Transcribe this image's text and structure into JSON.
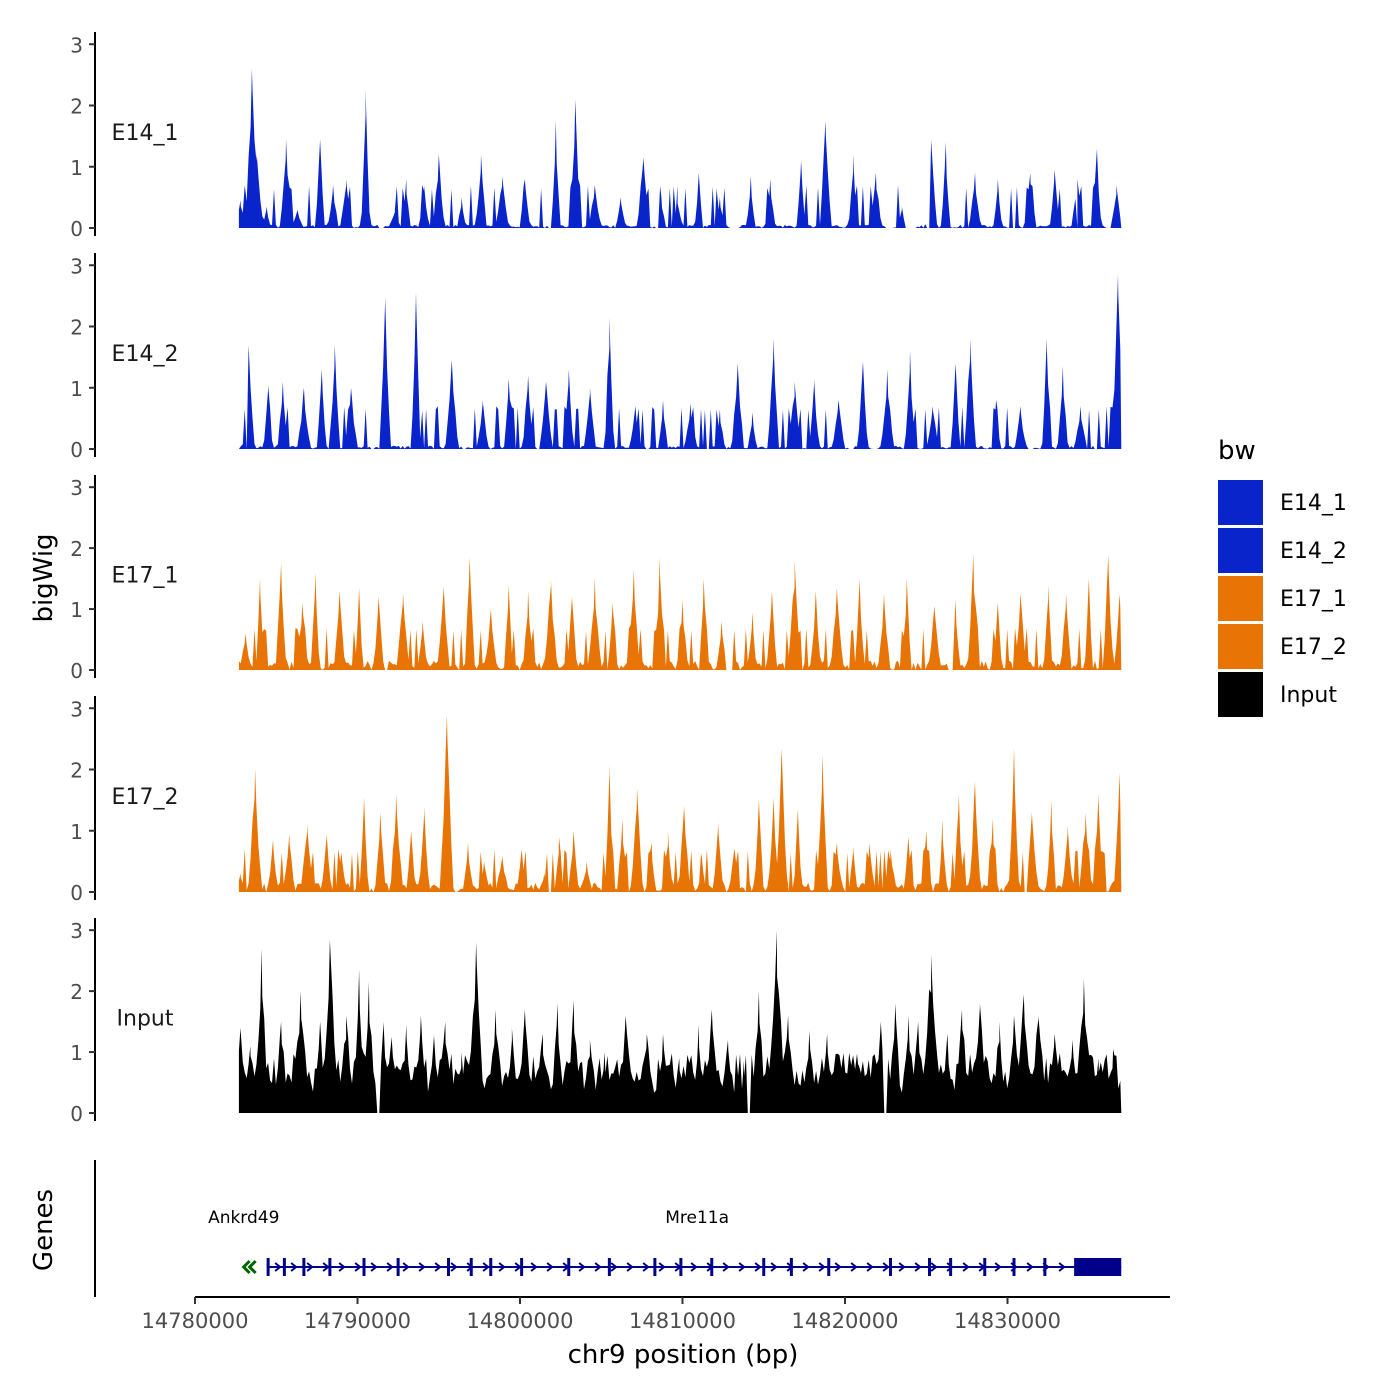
{
  "chart_data": {
    "type": "area",
    "xlabel": "chr9 position (bp)",
    "ylabel": "bigWig",
    "genes_label": "Genes",
    "xlim": [
      14780000,
      14840000
    ],
    "x_ticks": [
      14780000,
      14790000,
      14800000,
      14810000,
      14820000,
      14830000
    ],
    "x_tick_labels": [
      "14780000",
      "14790000",
      "14800000",
      "14810000",
      "14820000",
      "14830000"
    ],
    "ylim": [
      0,
      3.2
    ],
    "y_ticks": [
      0,
      1,
      2,
      3
    ],
    "y_tick_labels": [
      "0",
      "1",
      "2",
      "3"
    ],
    "data_start": 14782700,
    "data_end": 14837000,
    "legend": {
      "title": "bw",
      "position": "right",
      "entries": [
        {
          "label": "E14_1",
          "color": "#0a24cc"
        },
        {
          "label": "E14_2",
          "color": "#0a24cc"
        },
        {
          "label": "E17_1",
          "color": "#e87405"
        },
        {
          "label": "E17_2",
          "color": "#e87405"
        },
        {
          "label": "Input",
          "color": "#000000"
        }
      ]
    },
    "series": [
      {
        "name": "E14_1",
        "color": "#0a24cc",
        "peaks": [
          [
            14782800,
            0.45
          ],
          [
            14783500,
            2.6
          ],
          [
            14783800,
            1.2
          ],
          [
            14784400,
            0.35
          ],
          [
            14785600,
            1.45
          ],
          [
            14786300,
            0.3
          ],
          [
            14787700,
            1.45
          ],
          [
            14788500,
            0.7
          ],
          [
            14789300,
            0.8
          ],
          [
            14790500,
            2.25
          ],
          [
            14792300,
            0.3
          ],
          [
            14793000,
            0.8
          ],
          [
            14794100,
            0.7
          ],
          [
            14795000,
            1.2
          ],
          [
            14796400,
            0.5
          ],
          [
            14797600,
            1.2
          ],
          [
            14798900,
            0.85
          ],
          [
            14800300,
            0.8
          ],
          [
            14802200,
            1.75
          ],
          [
            14803400,
            2.1
          ],
          [
            14804600,
            0.7
          ],
          [
            14806200,
            0.5
          ],
          [
            14807600,
            1.15
          ],
          [
            14808700,
            0.5
          ],
          [
            14809700,
            0.4
          ],
          [
            14811000,
            0.9
          ],
          [
            14812300,
            0.5
          ],
          [
            14814200,
            0.85
          ],
          [
            14815400,
            0.8
          ],
          [
            14817300,
            1.1
          ],
          [
            14818800,
            1.75
          ],
          [
            14820500,
            1.2
          ],
          [
            14821900,
            0.9
          ],
          [
            14823500,
            0.35
          ],
          [
            14825300,
            1.45
          ],
          [
            14826200,
            1.4
          ],
          [
            14828000,
            0.9
          ],
          [
            14829400,
            0.8
          ],
          [
            14831400,
            0.9
          ],
          [
            14832900,
            0.95
          ],
          [
            14834300,
            0.8
          ],
          [
            14835500,
            1.3
          ],
          [
            14836700,
            0.7
          ]
        ],
        "gaps": [
          [
            14791300,
            14791600
          ],
          [
            14801700,
            14801900
          ],
          [
            14808300,
            14808500
          ],
          [
            14812900,
            14813500
          ],
          [
            14822500,
            14823000
          ],
          [
            14823700,
            14824400
          ],
          [
            14825000,
            14825200
          ],
          [
            14830300,
            14830500
          ],
          [
            14834200,
            14834400
          ],
          [
            14836100,
            14836400
          ]
        ]
      },
      {
        "name": "E14_2",
        "color": "#0a24cc",
        "peaks": [
          [
            14783300,
            1.7
          ],
          [
            14784500,
            1.05
          ],
          [
            14785400,
            1.1
          ],
          [
            14786700,
            1.0
          ],
          [
            14787800,
            1.3
          ],
          [
            14788600,
            1.7
          ],
          [
            14789600,
            1.0
          ],
          [
            14791700,
            2.5
          ],
          [
            14793600,
            2.55
          ],
          [
            14795800,
            1.45
          ],
          [
            14797700,
            0.8
          ],
          [
            14799300,
            1.15
          ],
          [
            14800500,
            1.2
          ],
          [
            14801600,
            1.1
          ],
          [
            14803000,
            1.3
          ],
          [
            14804300,
            1.0
          ],
          [
            14805500,
            2.15
          ],
          [
            14807100,
            0.7
          ],
          [
            14808800,
            0.8
          ],
          [
            14810500,
            0.75
          ],
          [
            14812300,
            0.65
          ],
          [
            14813400,
            1.4
          ],
          [
            14814300,
            0.6
          ],
          [
            14815600,
            1.8
          ],
          [
            14816900,
            1.1
          ],
          [
            14818100,
            1.15
          ],
          [
            14819600,
            0.8
          ],
          [
            14821100,
            1.45
          ],
          [
            14822600,
            1.3
          ],
          [
            14824000,
            1.6
          ],
          [
            14825400,
            0.7
          ],
          [
            14826800,
            1.4
          ],
          [
            14827700,
            1.8
          ],
          [
            14829300,
            0.8
          ],
          [
            14830800,
            0.7
          ],
          [
            14832400,
            1.8
          ],
          [
            14833400,
            1.35
          ],
          [
            14834500,
            0.7
          ],
          [
            14836800,
            2.85
          ]
        ],
        "gaps": [
          [
            14783100,
            14783200
          ],
          [
            14790800,
            14791000
          ],
          [
            14796500,
            14796700
          ],
          [
            14801000,
            14801200
          ],
          [
            14807700,
            14807900
          ],
          [
            14811500,
            14811700
          ],
          [
            14820200,
            14820500
          ],
          [
            14821800,
            14822000
          ],
          [
            14831300,
            14831600
          ],
          [
            14835300,
            14835600
          ]
        ]
      },
      {
        "name": "E17_1",
        "color": "#e87405",
        "peaks": [
          [
            14783100,
            0.6
          ],
          [
            14784000,
            1.5
          ],
          [
            14785300,
            1.75
          ],
          [
            14786600,
            1.1
          ],
          [
            14787400,
            1.6
          ],
          [
            14788900,
            1.3
          ],
          [
            14790100,
            1.35
          ],
          [
            14791300,
            1.2
          ],
          [
            14792800,
            1.25
          ],
          [
            14794000,
            0.8
          ],
          [
            14795300,
            1.4
          ],
          [
            14796900,
            1.85
          ],
          [
            14798200,
            1.0
          ],
          [
            14799300,
            1.4
          ],
          [
            14800500,
            1.3
          ],
          [
            14801900,
            1.5
          ],
          [
            14803200,
            1.2
          ],
          [
            14804600,
            1.5
          ],
          [
            14805700,
            1.1
          ],
          [
            14807000,
            1.65
          ],
          [
            14808600,
            1.85
          ],
          [
            14810000,
            1.15
          ],
          [
            14811300,
            1.5
          ],
          [
            14812400,
            0.8
          ],
          [
            14814300,
            0.95
          ],
          [
            14815500,
            1.3
          ],
          [
            14816900,
            1.8
          ],
          [
            14818200,
            1.3
          ],
          [
            14819500,
            1.35
          ],
          [
            14820900,
            1.5
          ],
          [
            14822400,
            1.25
          ],
          [
            14823800,
            1.5
          ],
          [
            14825500,
            1.05
          ],
          [
            14826800,
            1.15
          ],
          [
            14827900,
            1.9
          ],
          [
            14829400,
            1.1
          ],
          [
            14830800,
            1.25
          ],
          [
            14832500,
            1.4
          ],
          [
            14833600,
            1.25
          ],
          [
            14835000,
            1.5
          ],
          [
            14836200,
            1.9
          ],
          [
            14836900,
            1.25
          ]
        ],
        "gaps": [
          [
            14791700,
            14791900
          ],
          [
            14812600,
            14813100
          ],
          [
            14826300,
            14826700
          ]
        ]
      },
      {
        "name": "E17_2",
        "color": "#e87405",
        "peaks": [
          [
            14782800,
            0.3
          ],
          [
            14783700,
            2.0
          ],
          [
            14784800,
            0.85
          ],
          [
            14785800,
            0.95
          ],
          [
            14786900,
            1.1
          ],
          [
            14788100,
            0.95
          ],
          [
            14789000,
            0.65
          ],
          [
            14790400,
            1.55
          ],
          [
            14791400,
            1.3
          ],
          [
            14792400,
            1.6
          ],
          [
            14793300,
            1.0
          ],
          [
            14794100,
            1.4
          ],
          [
            14795500,
            2.9
          ],
          [
            14796800,
            0.8
          ],
          [
            14797800,
            0.5
          ],
          [
            14798900,
            0.6
          ],
          [
            14800100,
            0.7
          ],
          [
            14801500,
            0.3
          ],
          [
            14802400,
            0.9
          ],
          [
            14803300,
            1.0
          ],
          [
            14804100,
            0.5
          ],
          [
            14805500,
            2.1
          ],
          [
            14806300,
            1.2
          ],
          [
            14807200,
            1.7
          ],
          [
            14808100,
            0.8
          ],
          [
            14809100,
            1.0
          ],
          [
            14810100,
            1.4
          ],
          [
            14811200,
            0.55
          ],
          [
            14812200,
            1.1
          ],
          [
            14813200,
            0.7
          ],
          [
            14814700,
            1.5
          ],
          [
            14815600,
            1.55
          ],
          [
            14816100,
            2.35
          ],
          [
            14817100,
            1.35
          ],
          [
            14818600,
            2.25
          ],
          [
            14819500,
            0.8
          ],
          [
            14820500,
            0.75
          ],
          [
            14821500,
            0.8
          ],
          [
            14822800,
            0.7
          ],
          [
            14823900,
            0.9
          ],
          [
            14825000,
            1.0
          ],
          [
            14826000,
            1.2
          ],
          [
            14827000,
            1.6
          ],
          [
            14828000,
            1.8
          ],
          [
            14829100,
            1.2
          ],
          [
            14830400,
            2.35
          ],
          [
            14831500,
            1.3
          ],
          [
            14832700,
            1.5
          ],
          [
            14833700,
            1.1
          ],
          [
            14834800,
            1.3
          ],
          [
            14835600,
            1.6
          ],
          [
            14836900,
            1.95
          ]
        ],
        "gaps": [
          [
            14784300,
            14784400
          ],
          [
            14790900,
            14791000
          ],
          [
            14801700,
            14801900
          ],
          [
            14806600,
            14806700
          ],
          [
            14812600,
            14812800
          ],
          [
            14831000,
            14831200
          ]
        ]
      },
      {
        "name": "Input",
        "color": "#000000",
        "peaks": [
          [
            14782800,
            1.4
          ],
          [
            14783400,
            1.1
          ],
          [
            14784100,
            2.7
          ],
          [
            14785300,
            1.5
          ],
          [
            14786500,
            2.0
          ],
          [
            14787700,
            1.5
          ],
          [
            14788300,
            2.85
          ],
          [
            14789300,
            1.6
          ],
          [
            14790100,
            2.35
          ],
          [
            14790700,
            2.15
          ],
          [
            14791600,
            1.5
          ],
          [
            14792100,
            1.25
          ],
          [
            14793000,
            1.45
          ],
          [
            14793900,
            1.6
          ],
          [
            14794700,
            1.3
          ],
          [
            14795400,
            1.5
          ],
          [
            14796400,
            1.0
          ],
          [
            14797300,
            2.8
          ],
          [
            14798500,
            1.7
          ],
          [
            14799500,
            1.4
          ],
          [
            14800300,
            1.7
          ],
          [
            14801400,
            1.3
          ],
          [
            14802300,
            1.8
          ],
          [
            14803300,
            1.85
          ],
          [
            14804300,
            1.2
          ],
          [
            14805200,
            1.0
          ],
          [
            14806500,
            1.6
          ],
          [
            14807800,
            1.3
          ],
          [
            14808800,
            1.3
          ],
          [
            14809800,
            0.9
          ],
          [
            14811000,
            1.45
          ],
          [
            14811800,
            1.7
          ],
          [
            14812800,
            1.2
          ],
          [
            14813800,
            0.6
          ],
          [
            14814700,
            2.0
          ],
          [
            14815800,
            3.0
          ],
          [
            14816500,
            1.6
          ],
          [
            14817800,
            1.35
          ],
          [
            14818900,
            1.3
          ],
          [
            14819900,
            1.0
          ],
          [
            14820800,
            0.8
          ],
          [
            14822200,
            1.5
          ],
          [
            14823100,
            1.8
          ],
          [
            14823900,
            1.6
          ],
          [
            14824500,
            1.5
          ],
          [
            14825300,
            2.6
          ],
          [
            14826300,
            1.3
          ],
          [
            14827200,
            1.7
          ],
          [
            14828300,
            1.8
          ],
          [
            14829500,
            1.5
          ],
          [
            14830400,
            1.6
          ],
          [
            14831000,
            1.95
          ],
          [
            14831900,
            1.6
          ],
          [
            14832900,
            1.3
          ],
          [
            14834000,
            1.2
          ],
          [
            14834700,
            2.2
          ],
          [
            14835600,
            0.9
          ],
          [
            14836500,
            1.05
          ]
        ],
        "gaps": [
          [
            14791200,
            14791400
          ],
          [
            14814000,
            14814200
          ],
          [
            14822400,
            14822600
          ]
        ]
      }
    ],
    "genes": [
      {
        "name": "Ankrd49",
        "strand": "-",
        "color": "#006400",
        "start": 14782500,
        "end": 14783200,
        "label_pos": 14783000
      },
      {
        "name": "Mre11a",
        "strand": "+",
        "color": "#00008b",
        "start": 14784500,
        "end": 14837000,
        "exons": [
          14784500,
          14785500,
          14786700,
          14788300,
          14790400,
          14792500,
          14795600,
          14797000,
          14798200,
          14800100,
          14803000,
          14805500,
          14808300,
          14809900,
          14811800,
          14815000,
          14816700,
          14819000,
          14822800,
          14825200,
          14826500,
          14828600,
          14830400,
          14832300
        ],
        "utr_start": 14834100,
        "label_pos": 14810900
      }
    ]
  }
}
